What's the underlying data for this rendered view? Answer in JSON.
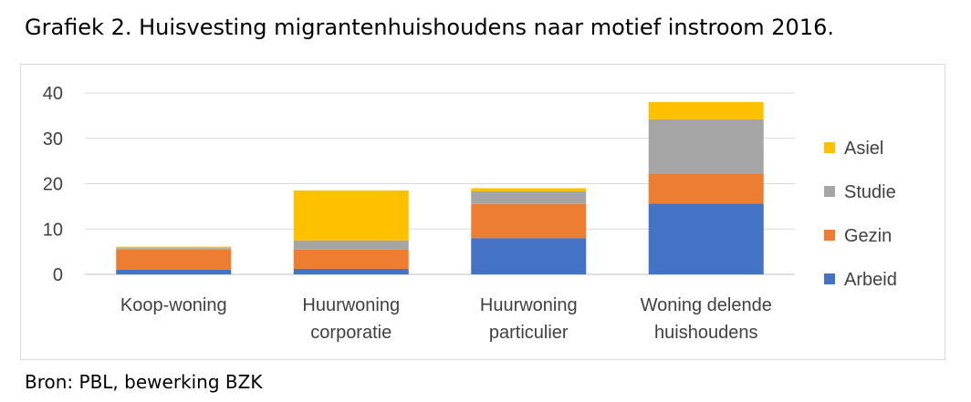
{
  "title": "Grafiek 2. Huisvesting migrantenhuishoudens naar motief instroom 2016.",
  "source": "Bron: PBL, bewerking BZK",
  "chart_data": {
    "type": "bar",
    "stacked": true,
    "categories": [
      [
        "Koop-woning"
      ],
      [
        "Huurwoning",
        "corporatie"
      ],
      [
        "Huurwoning",
        "particulier"
      ],
      [
        "Woning delende",
        "huishoudens"
      ]
    ],
    "series": [
      {
        "name": "Arbeid",
        "color": "#4472c4",
        "values": [
          1,
          1.2,
          8,
          15.6
        ]
      },
      {
        "name": "Gezin",
        "color": "#ed7d31",
        "values": [
          4.5,
          4.3,
          7.5,
          6.6
        ]
      },
      {
        "name": "Studie",
        "color": "#a5a5a5",
        "values": [
          0.3,
          2,
          2.8,
          12
        ]
      },
      {
        "name": "Asiel",
        "color": "#ffc000",
        "values": [
          0.3,
          11,
          0.7,
          3.8
        ]
      }
    ],
    "yticks": [
      0,
      10,
      20,
      30,
      40
    ],
    "ylim": [
      0,
      40
    ],
    "grid": true,
    "legend_position": "right",
    "xlabel": "",
    "ylabel": ""
  }
}
